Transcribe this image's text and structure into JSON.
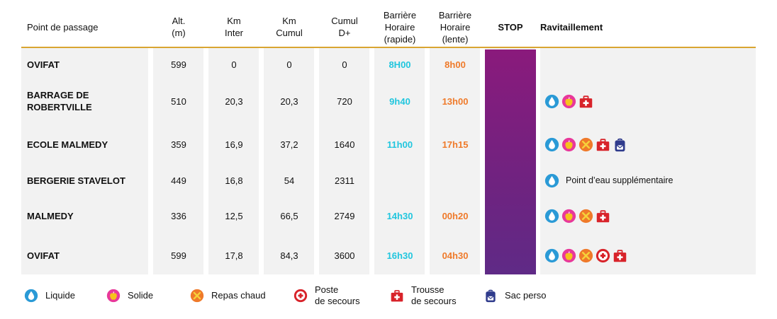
{
  "headers": {
    "point": "Point de passage",
    "alt": [
      "Alt.",
      "(m)"
    ],
    "km_inter": [
      "Km",
      "Inter"
    ],
    "km_cumul": [
      "Km",
      "Cumul"
    ],
    "cumul_d": [
      "Cumul",
      "D+"
    ],
    "barriere_rapide": [
      "Barrière",
      "Horaire",
      "(rapide)"
    ],
    "barriere_lente": [
      "Barrière",
      "Horaire",
      "(lente)"
    ],
    "stop": "STOP",
    "ravitaillement": "Ravitaillement"
  },
  "rows": [
    {
      "name": [
        "OVIFAT"
      ],
      "alt": "599",
      "km_inter": "0",
      "km_cumul": "0",
      "cumul_d": "0",
      "rapide": "8H00",
      "lente": "8h00",
      "icons": [],
      "note": ""
    },
    {
      "name": [
        "BARRAGE DE",
        "ROBERTVILLE"
      ],
      "alt": "510",
      "km_inter": "20,3",
      "km_cumul": "20,3",
      "cumul_d": "720",
      "rapide": "9h40",
      "lente": "13h00",
      "icons": [
        "water-drop-icon",
        "apple-icon",
        "first-aid-kit-icon"
      ],
      "note": ""
    },
    {
      "name": [
        "ECOLE MALMEDY"
      ],
      "alt": "359",
      "km_inter": "16,9",
      "km_cumul": "37,2",
      "cumul_d": "1640",
      "rapide": "11h00",
      "lente": "17h15",
      "icons": [
        "water-drop-icon",
        "apple-icon",
        "hot-meal-icon",
        "first-aid-kit-icon",
        "backpack-icon"
      ],
      "note": ""
    },
    {
      "name": [
        "BERGERIE STAVELOT"
      ],
      "alt": "449",
      "km_inter": "16,8",
      "km_cumul": "54",
      "cumul_d": "2311",
      "rapide": "",
      "lente": "",
      "icons": [
        "water-drop-icon"
      ],
      "note": "Point d’eau supplémentaire"
    },
    {
      "name": [
        "MALMEDY"
      ],
      "alt": "336",
      "km_inter": "12,5",
      "km_cumul": "66,5",
      "cumul_d": "2749",
      "rapide": "14h30",
      "lente": "00h20",
      "icons": [
        "water-drop-icon",
        "apple-icon",
        "hot-meal-icon",
        "first-aid-kit-icon"
      ],
      "note": ""
    },
    {
      "name": [
        "OVIFAT"
      ],
      "alt": "599",
      "km_inter": "17,8",
      "km_cumul": "84,3",
      "cumul_d": "3600",
      "rapide": "16h30",
      "lente": "04h30",
      "icons": [
        "water-drop-icon",
        "apple-icon",
        "hot-meal-icon",
        "first-aid-post-icon",
        "first-aid-kit-icon"
      ],
      "note": ""
    }
  ],
  "legend": [
    {
      "icon": "water-drop-icon",
      "label": [
        "Liquide"
      ]
    },
    {
      "icon": "apple-icon",
      "label": [
        "Solide"
      ]
    },
    {
      "icon": "hot-meal-icon",
      "label": [
        "Repas chaud"
      ]
    },
    {
      "icon": "first-aid-post-icon",
      "label": [
        "Poste",
        "de secours"
      ]
    },
    {
      "icon": "first-aid-kit-icon",
      "label": [
        "Trousse",
        "de secours"
      ]
    },
    {
      "icon": "backpack-icon",
      "label": [
        "Sac perso"
      ]
    }
  ],
  "colors": {
    "accent_rule": "#d9a531",
    "barriere_rapide": "#21c6de",
    "barriere_lente": "#ef7a2a",
    "stop_column": "#7a2080",
    "water": "#2a9ad6",
    "solid": "#e8389a",
    "hot_meal": "#ef7a2a",
    "first_aid": "#d8232a",
    "backpack": "#2f3b8c"
  }
}
